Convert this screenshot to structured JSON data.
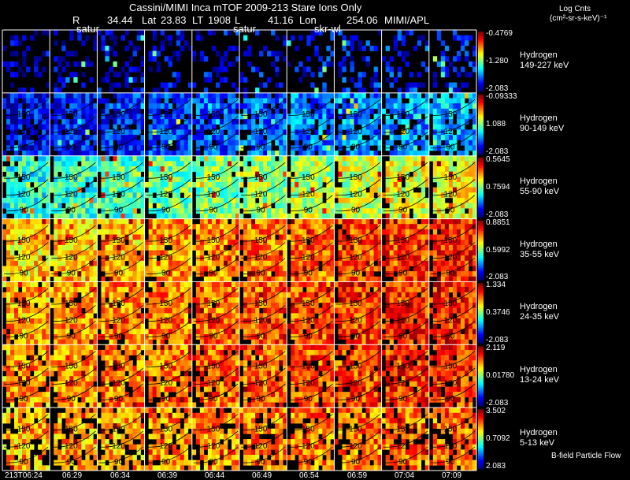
{
  "header": {
    "title": "Cassini/MIMI Inca mTOF  2009-213   Stare   Ions Only",
    "line2": {
      "r_label": "R",
      "r_value": "34.44",
      "lat_label": "Lat",
      "lat_value": "23.83",
      "lt_label": "LT",
      "lt_value": "1908",
      "l_label": "L",
      "l_value": "41.16",
      "lon_label": "Lon",
      "lon_value": "254.06",
      "credit": "MIMI/APL"
    },
    "panel_tags": [
      "satur",
      "satur",
      "skr-wl"
    ]
  },
  "colorbar_title": {
    "line1": "Log Cnts",
    "line2": "(cm²-sr-s-keV)⁻¹"
  },
  "footer_note": "B-field Particle Flow",
  "chart_data": {
    "type": "heatmap",
    "title": "Cassini/MIMI Inca mTOF  2009-213   Stare   Ions Only",
    "time_labels": [
      "213T06:24",
      "06:29",
      "06:34",
      "06:39",
      "06:44",
      "06:49",
      "06:54",
      "06:59",
      "07:04",
      "07:09"
    ],
    "contour_labels": [
      "150",
      "120",
      "90"
    ],
    "bands": [
      {
        "species": "Hydrogen",
        "energy": "149-227 keV",
        "cb_max": "-0.4769",
        "cb_mid": "-1.280",
        "cb_min": "-2.083",
        "level": 0.05,
        "cover": 0.3,
        "contours": false,
        "trend": 0.1
      },
      {
        "species": "Hydrogen",
        "energy": "90-149 keV",
        "cb_max": "-0.09333",
        "cb_mid": "1.088",
        "cb_min": "-2.083",
        "level": 0.12,
        "cover": 0.85,
        "contours": true,
        "trend": 0.18
      },
      {
        "species": "Hydrogen",
        "energy": "55-90 keV",
        "cb_max": "0.5645",
        "cb_mid": "0.7594",
        "cb_min": "-2.083",
        "level": 0.4,
        "cover": 0.95,
        "contours": true,
        "trend": 0.22
      },
      {
        "species": "Hydrogen",
        "energy": "35-55 keV",
        "cb_max": "0.8851",
        "cb_mid": "0.5992",
        "cb_min": "-2.083",
        "level": 0.66,
        "cover": 0.97,
        "contours": true,
        "trend": 0.18
      },
      {
        "species": "Hydrogen",
        "energy": "24-35 keV",
        "cb_max": "1.334",
        "cb_mid": "0.3746",
        "cb_min": "-2.083",
        "level": 0.71,
        "cover": 0.96,
        "contours": true,
        "trend": 0.14
      },
      {
        "species": "Hydrogen",
        "energy": "13-24 keV",
        "cb_max": "2.119",
        "cb_mid": "0.01780",
        "cb_min": "-2.083",
        "level": 0.72,
        "cover": 0.92,
        "contours": true,
        "trend": 0.12
      },
      {
        "species": "Hydrogen",
        "energy": "5-13 keV",
        "cb_max": "3.502",
        "cb_mid": "0.7092",
        "cb_min": "2.083",
        "level": 0.7,
        "cover": 0.82,
        "contours": true,
        "trend": 0.08
      }
    ]
  }
}
